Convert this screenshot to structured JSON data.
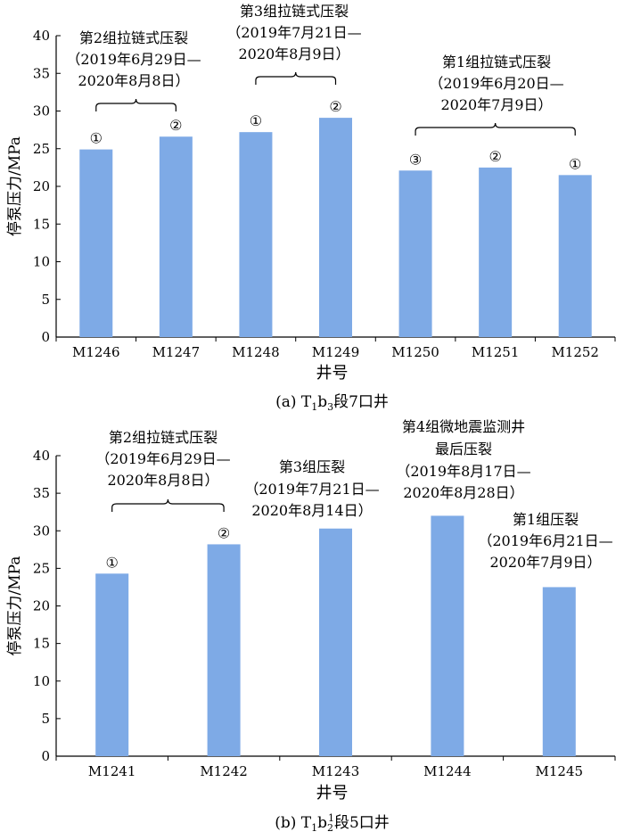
{
  "chart_data": [
    {
      "type": "bar",
      "caption": {
        "prefix": "(a) T",
        "sub1": "1",
        "mid": "b",
        "sub2": "3",
        "suffix": "段7口井"
      },
      "xlabel": "井号",
      "ylabel": "停泵压力/MPa",
      "ylim": [
        0,
        40
      ],
      "yticks": [
        0,
        5,
        10,
        15,
        20,
        25,
        30,
        35,
        40
      ],
      "grid": false,
      "bar_color": "#7eaae6",
      "categories": [
        "M1246",
        "M1247",
        "M1248",
        "M1249",
        "M1250",
        "M1251",
        "M1252"
      ],
      "values": [
        24.9,
        26.6,
        27.2,
        29.1,
        22.1,
        22.5,
        21.5
      ],
      "bar_marks": [
        "①",
        "②",
        "①",
        "②",
        "③",
        "②",
        "①"
      ],
      "annotations": [
        {
          "lines": [
            "第2组拉链式压裂",
            "（2019年6月29日—",
            "2020年8月8日）"
          ],
          "bars": [
            0,
            1
          ]
        },
        {
          "lines": [
            "第3组拉链式压裂",
            "（2019年7月21日—",
            "2020年8月9日）"
          ],
          "bars": [
            2,
            3
          ]
        },
        {
          "lines": [
            "第1组拉链式压裂",
            "（2019年6月20日—",
            "2020年7月9日）"
          ],
          "bars": [
            4,
            6
          ]
        }
      ]
    },
    {
      "type": "bar",
      "caption": {
        "prefix": "(b) T",
        "sub1": "1",
        "mid": "b",
        "sub2": "2",
        "sup": "1",
        "suffix": "段5口井"
      },
      "xlabel": "井号",
      "ylabel": "停泵压力/MPa",
      "ylim": [
        0,
        40
      ],
      "yticks": [
        0,
        5,
        10,
        15,
        20,
        25,
        30,
        35,
        40
      ],
      "grid": false,
      "bar_color": "#7eaae6",
      "categories": [
        "M1241",
        "M1242",
        "M1243",
        "M1244",
        "M1245"
      ],
      "values": [
        24.3,
        28.2,
        30.3,
        32.0,
        22.5
      ],
      "bar_marks": [
        "①",
        "②",
        "",
        "",
        ""
      ],
      "annotations": [
        {
          "lines": [
            "第2组拉链式压裂",
            "（2019年6月29日—",
            "2020年8月8日）"
          ],
          "bars": [
            0,
            1
          ]
        },
        {
          "lines": [
            "第3组压裂",
            "（2019年7月21日—",
            "2020年8月14日）"
          ],
          "bars": [
            2
          ]
        },
        {
          "lines": [
            "第4组微地震监测井",
            "最后压裂",
            "（2019年8月17日—",
            "2020年8月28日）"
          ],
          "bars": [
            3
          ]
        },
        {
          "lines": [
            "第1组压裂",
            "（2019年6月21日—",
            "2020年7月9日）"
          ],
          "bars": [
            4
          ]
        }
      ]
    }
  ]
}
